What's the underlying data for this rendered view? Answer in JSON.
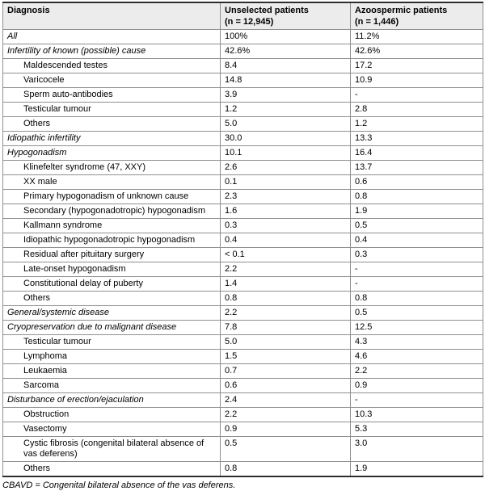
{
  "colors": {
    "header_bg": "#ececec",
    "inner_border": "#8f8f8f",
    "outer_border": "#2e2e2e"
  },
  "table": {
    "columns": [
      {
        "label": "Diagnosis",
        "sub": ""
      },
      {
        "label": "Unselected patients",
        "sub": "(n = 12,945)"
      },
      {
        "label": "Azoospermic patients",
        "sub": "(n = 1,446)"
      }
    ],
    "rows": [
      {
        "style": "category",
        "diagnosis": "All",
        "unselected": "100%",
        "azoospermic": "11.2%"
      },
      {
        "style": "category",
        "diagnosis": "Infertility of known (possible) cause",
        "unselected": "42.6%",
        "azoospermic": "42.6%"
      },
      {
        "style": "sub",
        "diagnosis": "Maldescended testes",
        "unselected": "8.4",
        "azoospermic": "17.2"
      },
      {
        "style": "sub",
        "diagnosis": "Varicocele",
        "unselected": "14.8",
        "azoospermic": "10.9"
      },
      {
        "style": "sub",
        "diagnosis": "Sperm auto-antibodies",
        "unselected": "3.9",
        "azoospermic": "-"
      },
      {
        "style": "sub",
        "diagnosis": "Testicular tumour",
        "unselected": "1.2",
        "azoospermic": "2.8"
      },
      {
        "style": "sub",
        "diagnosis": "Others",
        "unselected": "5.0",
        "azoospermic": "1.2"
      },
      {
        "style": "category",
        "diagnosis": "Idiopathic infertility",
        "unselected": "30.0",
        "azoospermic": "13.3"
      },
      {
        "style": "category",
        "diagnosis": "Hypogonadism",
        "unselected": "10.1",
        "azoospermic": "16.4"
      },
      {
        "style": "sub",
        "diagnosis": "Klinefelter syndrome (47, XXY)",
        "unselected": "2.6",
        "azoospermic": "13.7"
      },
      {
        "style": "sub",
        "diagnosis": "XX male",
        "unselected": "0.1",
        "azoospermic": "0.6"
      },
      {
        "style": "sub",
        "diagnosis": "Primary hypogonadism of unknown cause",
        "unselected": "2.3",
        "azoospermic": "0.8"
      },
      {
        "style": "sub",
        "diagnosis": "Secondary (hypogonadotropic) hypogonadism",
        "unselected": "1.6",
        "azoospermic": "1.9"
      },
      {
        "style": "sub",
        "diagnosis": "Kallmann syndrome",
        "unselected": "0.3",
        "azoospermic": "0.5"
      },
      {
        "style": "sub",
        "diagnosis": "Idiopathic hypogonadotropic hypogonadism",
        "unselected": "0.4",
        "azoospermic": "0.4"
      },
      {
        "style": "sub",
        "diagnosis": "Residual after pituitary surgery",
        "unselected": "< 0.1",
        "azoospermic": "0.3"
      },
      {
        "style": "sub",
        "diagnosis": "Late-onset hypogonadism",
        "unselected": "2.2",
        "azoospermic": "-"
      },
      {
        "style": "sub",
        "diagnosis": "Constitutional delay of puberty",
        "unselected": "1.4",
        "azoospermic": "-"
      },
      {
        "style": "sub",
        "diagnosis": "Others",
        "unselected": "0.8",
        "azoospermic": "0.8"
      },
      {
        "style": "category",
        "diagnosis": "General/systemic disease",
        "unselected": "2.2",
        "azoospermic": "0.5"
      },
      {
        "style": "category",
        "diagnosis": "Cryopreservation due to malignant disease",
        "unselected": "7.8",
        "azoospermic": "12.5"
      },
      {
        "style": "sub",
        "diagnosis": "Testicular tumour",
        "unselected": "5.0",
        "azoospermic": "4.3"
      },
      {
        "style": "sub",
        "diagnosis": "Lymphoma",
        "unselected": "1.5",
        "azoospermic": "4.6"
      },
      {
        "style": "sub",
        "diagnosis": "Leukaemia",
        "unselected": "0.7",
        "azoospermic": "2.2"
      },
      {
        "style": "sub",
        "diagnosis": "Sarcoma",
        "unselected": "0.6",
        "azoospermic": "0.9"
      },
      {
        "style": "category",
        "diagnosis": "Disturbance of erection/ejaculation",
        "unselected": "2.4",
        "azoospermic": "-"
      },
      {
        "style": "sub",
        "diagnosis": "Obstruction",
        "unselected": "2.2",
        "azoospermic": "10.3"
      },
      {
        "style": "sub",
        "diagnosis": "Vasectomy",
        "unselected": "0.9",
        "azoospermic": "5.3"
      },
      {
        "style": "sub",
        "diagnosis": "Cystic fibrosis (congenital bilateral absence of vas deferens)",
        "unselected": "0.5",
        "azoospermic": "3.0"
      },
      {
        "style": "sub",
        "diagnosis": "Others",
        "unselected": "0.8",
        "azoospermic": "1.9"
      }
    ],
    "footnote": "CBAVD = Congenital bilateral absence of the vas deferens."
  }
}
